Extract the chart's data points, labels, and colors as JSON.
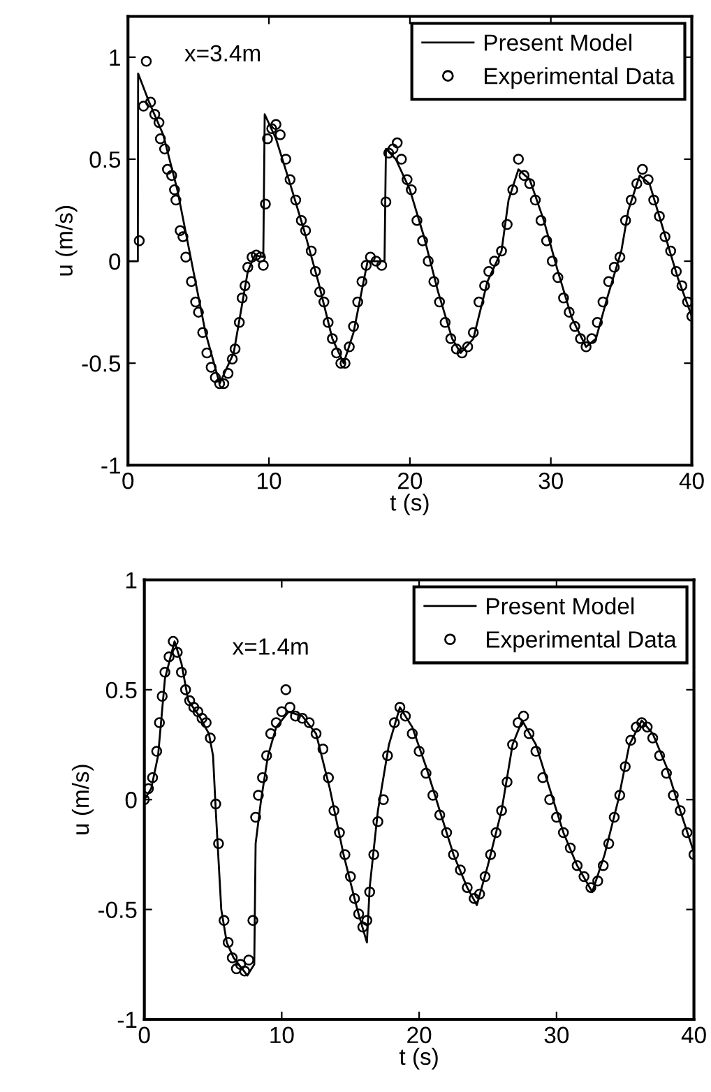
{
  "chart_data": [
    {
      "type": "line",
      "xlabel": "t (s)",
      "ylabel": "u (m/s)",
      "annotations": [
        "x=3.4m"
      ],
      "xlim": [
        0,
        40
      ],
      "ylim": [
        -1,
        1.2
      ],
      "xticks": [
        0,
        10,
        20,
        30,
        40
      ],
      "yticks": [
        -1,
        -0.5,
        0,
        0.5,
        1
      ],
      "legend": "top right",
      "grid": false,
      "series": [
        {
          "name": "Present Model",
          "color": "#000000",
          "marker": "none",
          "line_style": "solid",
          "x": [
            0,
            0.7,
            0.72,
            1.5,
            2.5,
            3.5,
            4.5,
            5.5,
            6.5,
            7.5,
            8.5,
            9,
            9.6,
            9.7,
            10.5,
            11.5,
            12.5,
            13.5,
            14.5,
            15.3,
            16,
            17,
            18.2,
            18.3,
            19,
            20,
            21,
            22,
            23,
            23.6,
            24.5,
            25.5,
            26.5,
            27,
            27.7,
            28.5,
            29.5,
            30.5,
            31.5,
            32.5,
            33.2,
            34,
            35,
            35.5,
            36.3,
            37,
            38,
            39,
            40
          ],
          "values": [
            0,
            0,
            0.92,
            0.78,
            0.62,
            0.35,
            0.0,
            -0.35,
            -0.6,
            -0.45,
            -0.05,
            0.03,
            0.02,
            0.72,
            0.6,
            0.38,
            0.15,
            -0.1,
            -0.38,
            -0.5,
            -0.35,
            0.0,
            0.0,
            0.55,
            0.5,
            0.35,
            0.12,
            -0.15,
            -0.38,
            -0.45,
            -0.38,
            -0.1,
            0.05,
            0.3,
            0.45,
            0.4,
            0.2,
            -0.05,
            -0.28,
            -0.42,
            -0.38,
            -0.18,
            0.05,
            0.25,
            0.42,
            0.38,
            0.15,
            -0.08,
            -0.27
          ]
        },
        {
          "name": "Experimental Data",
          "type": "scatter",
          "color": "#000000",
          "marker": "circle",
          "x": [
            0.8,
            1.3,
            1.1,
            1.6,
            1.9,
            2.2,
            2.3,
            2.6,
            2.8,
            3.1,
            3.3,
            3.4,
            3.7,
            3.9,
            4.1,
            4.5,
            4.8,
            5.0,
            5.3,
            5.6,
            5.9,
            6.2,
            6.5,
            6.8,
            7.1,
            7.4,
            7.6,
            7.9,
            8.1,
            8.3,
            8.5,
            8.8,
            9.1,
            9.4,
            9.6,
            9.75,
            9.9,
            10.2,
            10.5,
            10.8,
            11.2,
            11.5,
            11.9,
            12.3,
            12.6,
            13,
            13.3,
            13.6,
            13.9,
            14.2,
            14.5,
            14.8,
            15.1,
            15.4,
            15.7,
            16,
            16.3,
            16.6,
            16.9,
            17.2,
            17.6,
            18,
            18.3,
            18.5,
            18.8,
            19.1,
            19.4,
            19.8,
            20.1,
            20.5,
            20.9,
            21.3,
            21.7,
            22.1,
            22.5,
            22.9,
            23.3,
            23.7,
            24.1,
            24.5,
            24.9,
            25.3,
            25.6,
            26,
            26.5,
            26.9,
            27.3,
            27.7,
            28.1,
            28.5,
            28.9,
            29.3,
            29.7,
            30.1,
            30.5,
            30.9,
            31.3,
            31.7,
            32.1,
            32.5,
            32.9,
            33.3,
            33.7,
            34.1,
            34.5,
            34.9,
            35.3,
            35.7,
            36.1,
            36.5,
            36.9,
            37.3,
            37.7,
            38.1,
            38.5,
            38.9,
            39.3,
            39.7,
            40
          ],
          "values": [
            0.1,
            0.98,
            0.76,
            0.78,
            0.72,
            0.68,
            0.6,
            0.55,
            0.45,
            0.42,
            0.35,
            0.3,
            0.15,
            0.12,
            0.02,
            -0.1,
            -0.2,
            -0.25,
            -0.35,
            -0.45,
            -0.52,
            -0.57,
            -0.6,
            -0.6,
            -0.55,
            -0.48,
            -0.43,
            -0.3,
            -0.18,
            -0.12,
            -0.03,
            0.02,
            0.03,
            0.02,
            -0.02,
            0.28,
            0.6,
            0.65,
            0.67,
            0.62,
            0.5,
            0.4,
            0.3,
            0.2,
            0.15,
            0.05,
            -0.05,
            -0.15,
            -0.2,
            -0.3,
            -0.38,
            -0.45,
            -0.5,
            -0.5,
            -0.42,
            -0.32,
            -0.2,
            -0.1,
            -0.02,
            0.02,
            0.0,
            -0.02,
            0.29,
            0.53,
            0.55,
            0.58,
            0.5,
            0.4,
            0.35,
            0.2,
            0.1,
            0.0,
            -0.1,
            -0.2,
            -0.3,
            -0.38,
            -0.43,
            -0.45,
            -0.42,
            -0.35,
            -0.2,
            -0.12,
            -0.05,
            0.0,
            0.05,
            0.18,
            0.35,
            0.5,
            0.42,
            0.38,
            0.3,
            0.2,
            0.1,
            0.0,
            -0.08,
            -0.18,
            -0.25,
            -0.32,
            -0.38,
            -0.42,
            -0.38,
            -0.3,
            -0.2,
            -0.1,
            -0.03,
            0.02,
            0.2,
            0.3,
            0.38,
            0.45,
            0.4,
            0.3,
            0.22,
            0.12,
            0.05,
            -0.05,
            -0.12,
            -0.2,
            -0.27
          ]
        }
      ]
    },
    {
      "type": "line",
      "xlabel": "t (s)",
      "ylabel": "u (m/s)",
      "annotations": [
        "x=1.4m"
      ],
      "xlim": [
        0,
        40
      ],
      "ylim": [
        -1,
        1
      ],
      "xticks": [
        0,
        10,
        20,
        30,
        40
      ],
      "yticks": [
        -1,
        -0.5,
        0,
        0.5,
        1
      ],
      "legend": "top right",
      "grid": false,
      "series": [
        {
          "name": "Present Model",
          "color": "#000000",
          "marker": "none",
          "line_style": "solid",
          "x": [
            0,
            0.5,
            1,
            1.5,
            2.2,
            2.7,
            3.2,
            4,
            4.7,
            5,
            5.2,
            5.6,
            6,
            6.5,
            7.5,
            8,
            8.1,
            8.5,
            9,
            9.6,
            10.5,
            11.5,
            12.5,
            13.5,
            14.5,
            15.5,
            16.2,
            16.4,
            17,
            17.8,
            18.6,
            19.5,
            20.5,
            21.5,
            22.5,
            23.5,
            24.2,
            25,
            26,
            26.8,
            27.5,
            28.5,
            29.5,
            30.5,
            31.5,
            32.6,
            33.5,
            34.5,
            35.3,
            36.2,
            37,
            38,
            39,
            40
          ],
          "values": [
            0,
            0.05,
            0.2,
            0.55,
            0.72,
            0.62,
            0.45,
            0.38,
            0.3,
            0.2,
            -0.05,
            -0.5,
            -0.65,
            -0.72,
            -0.8,
            -0.75,
            -0.2,
            0.0,
            0.2,
            0.33,
            0.4,
            0.38,
            0.3,
            0.05,
            -0.25,
            -0.5,
            -0.65,
            -0.4,
            -0.05,
            0.25,
            0.42,
            0.33,
            0.15,
            -0.05,
            -0.25,
            -0.4,
            -0.48,
            -0.3,
            -0.05,
            0.25,
            0.36,
            0.25,
            0.05,
            -0.15,
            -0.3,
            -0.42,
            -0.25,
            0.0,
            0.25,
            0.36,
            0.3,
            0.15,
            -0.05,
            -0.24
          ]
        },
        {
          "name": "Experimental Data",
          "type": "scatter",
          "color": "#000000",
          "marker": "circle",
          "x": [
            0,
            0.3,
            0.6,
            0.9,
            1.1,
            1.3,
            1.5,
            1.8,
            2.1,
            2.4,
            2.7,
            3.0,
            3.3,
            3.6,
            3.9,
            4.2,
            4.5,
            4.8,
            5.2,
            5.4,
            5.8,
            6.1,
            6.4,
            6.7,
            7.0,
            7.3,
            7.6,
            7.9,
            8.1,
            8.3,
            8.6,
            8.9,
            9.2,
            9.6,
            10,
            10.3,
            10.6,
            11,
            11.5,
            12,
            12.5,
            13,
            13.4,
            13.8,
            14.2,
            14.6,
            15,
            15.3,
            15.6,
            15.9,
            16.2,
            16.4,
            16.7,
            17,
            17.4,
            17.7,
            18.2,
            18.6,
            19,
            19.5,
            20,
            20.5,
            21,
            21.5,
            22,
            22.5,
            23,
            23.5,
            24,
            24.4,
            24.8,
            25.2,
            25.6,
            26,
            26.4,
            26.8,
            27.2,
            27.6,
            28,
            28.5,
            29,
            29.5,
            30,
            30.5,
            31,
            31.5,
            32,
            32.5,
            33,
            33.4,
            33.8,
            34.2,
            34.6,
            35,
            35.4,
            35.8,
            36.2,
            36.6,
            37,
            37.5,
            38,
            38.5,
            39,
            39.5,
            40
          ],
          "values": [
            0.0,
            0.05,
            0.1,
            0.22,
            0.35,
            0.47,
            0.58,
            0.65,
            0.72,
            0.67,
            0.58,
            0.5,
            0.45,
            0.42,
            0.4,
            0.37,
            0.35,
            0.28,
            -0.02,
            -0.2,
            -0.55,
            -0.65,
            -0.72,
            -0.77,
            -0.75,
            -0.78,
            -0.73,
            -0.55,
            -0.08,
            0.02,
            0.1,
            0.2,
            0.3,
            0.35,
            0.4,
            0.5,
            0.42,
            0.38,
            0.37,
            0.35,
            0.3,
            0.23,
            0.1,
            -0.05,
            -0.15,
            -0.25,
            -0.35,
            -0.45,
            -0.52,
            -0.58,
            -0.55,
            -0.42,
            -0.25,
            -0.1,
            0.0,
            0.2,
            0.35,
            0.42,
            0.38,
            0.3,
            0.22,
            0.12,
            0.02,
            -0.07,
            -0.15,
            -0.25,
            -0.32,
            -0.4,
            -0.45,
            -0.43,
            -0.35,
            -0.25,
            -0.15,
            -0.05,
            0.08,
            0.25,
            0.35,
            0.38,
            0.3,
            0.22,
            0.1,
            0.0,
            -0.08,
            -0.15,
            -0.22,
            -0.3,
            -0.35,
            -0.4,
            -0.37,
            -0.3,
            -0.2,
            -0.08,
            0.02,
            0.15,
            0.27,
            0.33,
            0.35,
            0.33,
            0.28,
            0.2,
            0.12,
            0.02,
            -0.05,
            -0.15,
            -0.25
          ]
        }
      ]
    }
  ]
}
